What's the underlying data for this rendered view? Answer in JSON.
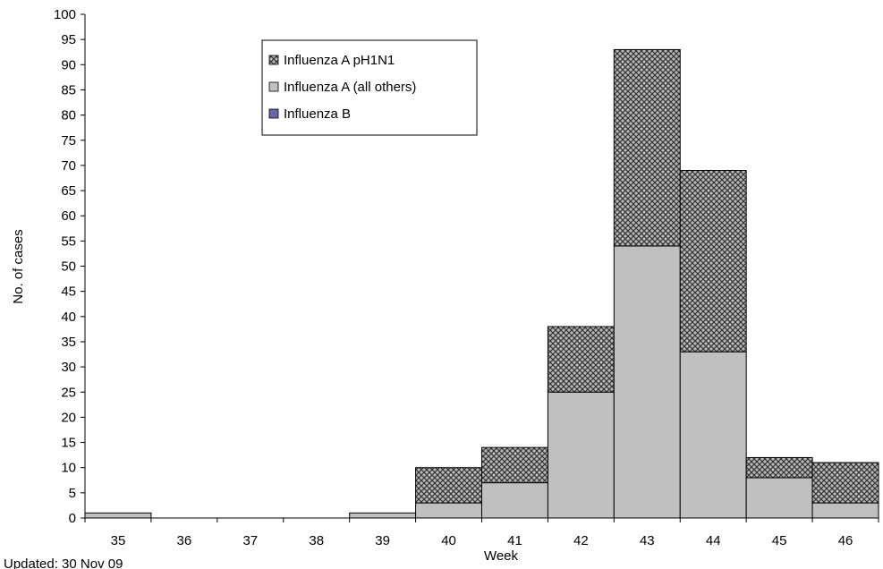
{
  "chart_data": {
    "type": "bar",
    "stacked": true,
    "categories": [
      "35",
      "36",
      "37",
      "38",
      "39",
      "40",
      "41",
      "42",
      "43",
      "44",
      "45",
      "46"
    ],
    "series": [
      {
        "name": "Influenza B",
        "values": [
          0,
          0,
          0,
          0,
          0,
          0,
          0,
          0,
          0,
          0,
          0,
          0
        ],
        "color": "#6666a8",
        "pattern": "solid"
      },
      {
        "name": "Influenza A (all others)",
        "values": [
          1,
          0,
          0,
          0,
          1,
          3,
          7,
          25,
          54,
          33,
          8,
          3
        ],
        "color": "#c0c0c0",
        "pattern": "solid"
      },
      {
        "name": "Influenza A pH1N1",
        "values": [
          0,
          0,
          0,
          0,
          0,
          7,
          7,
          13,
          39,
          36,
          4,
          8
        ],
        "color": "#a0a0a0",
        "pattern": "crosshatch"
      }
    ],
    "legend_order": [
      "Influenza A pH1N1",
      "Influenza A (all others)",
      "Influenza B"
    ],
    "xlabel": "Week",
    "ylabel": "No. of cases",
    "ylim": [
      0,
      100
    ],
    "ytick_step": 5,
    "grid": false,
    "legend_position": "top-center",
    "footnote": "Updated: 30 Nov 09"
  }
}
